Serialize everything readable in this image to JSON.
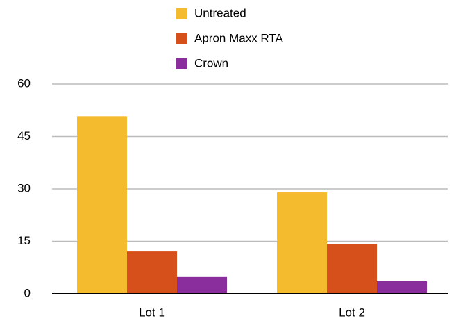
{
  "chart_data": {
    "type": "bar",
    "categories": [
      "Lot 1",
      "Lot 2"
    ],
    "series": [
      {
        "name": "Untreated",
        "color": "#f4bb2f",
        "values": [
          50.8,
          29
        ]
      },
      {
        "name": "Apron Maxx RTA",
        "color": "#d6501b",
        "values": [
          12.1,
          14.3
        ]
      },
      {
        "name": "Crown",
        "color": "#8a2e9e",
        "values": [
          4.8,
          3.6
        ]
      }
    ],
    "ylim": [
      0,
      60
    ],
    "yticks": [
      0,
      15,
      30,
      45,
      60
    ],
    "grid": true,
    "legend": "top"
  }
}
